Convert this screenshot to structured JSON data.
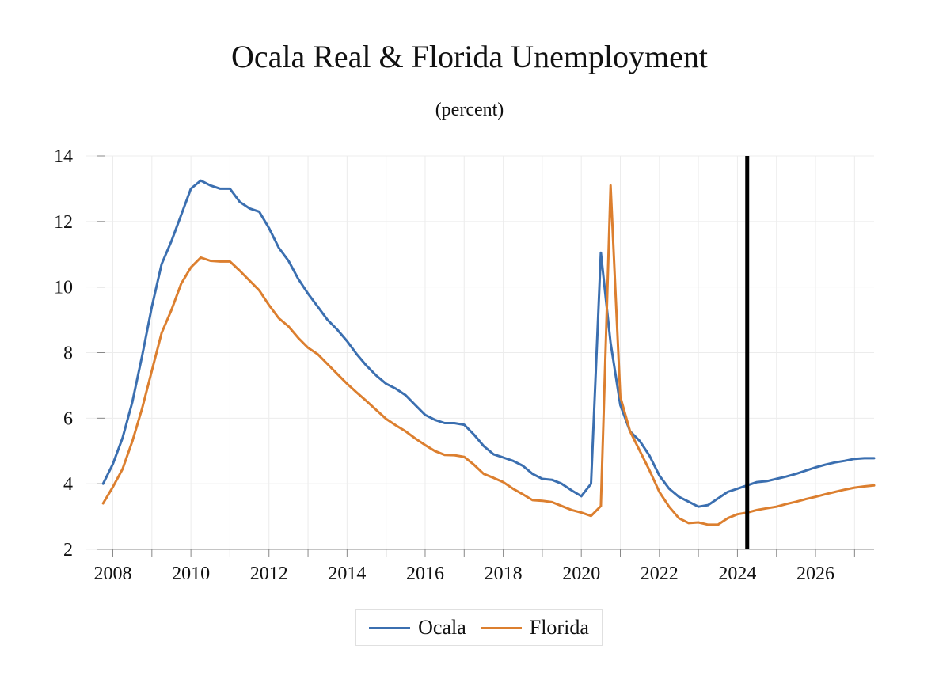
{
  "chart_data": {
    "type": "line",
    "title": "Ocala Real & Florida Unemployment",
    "subtitle": "(percent)",
    "xlabel": "",
    "ylabel": "",
    "xlim": [
      2007.3,
      2027.5
    ],
    "ylim": [
      2,
      14
    ],
    "yticks": [
      2,
      4,
      6,
      8,
      10,
      12,
      14
    ],
    "xticks": [
      2008,
      2010,
      2012,
      2014,
      2016,
      2018,
      2020,
      2022,
      2024,
      2026
    ],
    "minor_xticks": [
      2008,
      2009,
      2010,
      2011,
      2012,
      2013,
      2014,
      2015,
      2016,
      2017,
      2018,
      2019,
      2020,
      2021,
      2022,
      2023,
      2024,
      2025,
      2026,
      2027
    ],
    "grid": true,
    "forecast_marker_x": 2024.25,
    "legend_position": "bottom-center",
    "x": [
      2007.75,
      2008.0,
      2008.25,
      2008.5,
      2008.75,
      2009.0,
      2009.25,
      2009.5,
      2009.75,
      2010.0,
      2010.25,
      2010.5,
      2010.75,
      2011.0,
      2011.25,
      2011.5,
      2011.75,
      2012.0,
      2012.25,
      2012.5,
      2012.75,
      2013.0,
      2013.25,
      2013.5,
      2013.75,
      2014.0,
      2014.25,
      2014.5,
      2014.75,
      2015.0,
      2015.25,
      2015.5,
      2015.75,
      2016.0,
      2016.25,
      2016.5,
      2016.75,
      2017.0,
      2017.25,
      2017.5,
      2017.75,
      2018.0,
      2018.25,
      2018.5,
      2018.75,
      2019.0,
      2019.25,
      2019.5,
      2019.75,
      2020.0,
      2020.25,
      2020.5,
      2020.75,
      2021.0,
      2021.25,
      2021.5,
      2021.75,
      2022.0,
      2022.25,
      2022.5,
      2022.75,
      2023.0,
      2023.25,
      2023.5,
      2023.75,
      2024.0,
      2024.25,
      2024.5,
      2024.75,
      2025.0,
      2025.25,
      2025.5,
      2025.75,
      2026.0,
      2026.25,
      2026.5,
      2026.75,
      2027.0,
      2027.25,
      2027.5
    ],
    "series": [
      {
        "name": "Ocala",
        "color": "#3b6fb0",
        "values": [
          4.0,
          4.6,
          5.4,
          6.5,
          7.9,
          9.4,
          10.7,
          11.4,
          12.2,
          13.0,
          13.25,
          13.1,
          13.0,
          13.0,
          12.6,
          12.4,
          12.3,
          11.8,
          11.2,
          10.8,
          10.25,
          9.8,
          9.4,
          9.0,
          8.7,
          8.35,
          7.95,
          7.6,
          7.3,
          7.05,
          6.9,
          6.7,
          6.4,
          6.1,
          5.95,
          5.85,
          5.85,
          5.8,
          5.5,
          5.15,
          4.9,
          4.8,
          4.7,
          4.55,
          4.3,
          4.15,
          4.12,
          4.0,
          3.8,
          3.62,
          4.0,
          11.05,
          8.3,
          6.4,
          5.6,
          5.3,
          4.85,
          4.25,
          3.85,
          3.6,
          3.45,
          3.3,
          3.35,
          3.55,
          3.75,
          3.85,
          3.95,
          4.05,
          4.08,
          4.15,
          4.22,
          4.3,
          4.4,
          4.5,
          4.58,
          4.65,
          4.7,
          4.76,
          4.78,
          4.78
        ]
      },
      {
        "name": "Florida",
        "color": "#dc7f2f",
        "values": [
          3.4,
          3.9,
          4.45,
          5.3,
          6.3,
          7.45,
          8.6,
          9.3,
          10.1,
          10.6,
          10.9,
          10.8,
          10.78,
          10.78,
          10.5,
          10.2,
          9.9,
          9.45,
          9.05,
          8.8,
          8.45,
          8.15,
          7.95,
          7.65,
          7.35,
          7.05,
          6.78,
          6.52,
          6.25,
          5.98,
          5.78,
          5.6,
          5.38,
          5.18,
          5.0,
          4.88,
          4.87,
          4.82,
          4.58,
          4.3,
          4.18,
          4.05,
          3.85,
          3.68,
          3.5,
          3.48,
          3.44,
          3.32,
          3.2,
          3.12,
          3.02,
          3.32,
          13.1,
          6.65,
          5.6,
          5.0,
          4.4,
          3.75,
          3.3,
          2.95,
          2.8,
          2.82,
          2.75,
          2.75,
          2.95,
          3.07,
          3.12,
          3.2,
          3.25,
          3.3,
          3.38,
          3.45,
          3.53,
          3.6,
          3.68,
          3.75,
          3.82,
          3.88,
          3.92,
          3.95
        ]
      }
    ]
  },
  "legend": {
    "items": [
      {
        "label": "Ocala",
        "color": "#3b6fb0"
      },
      {
        "label": "Florida",
        "color": "#dc7f2f"
      }
    ]
  }
}
